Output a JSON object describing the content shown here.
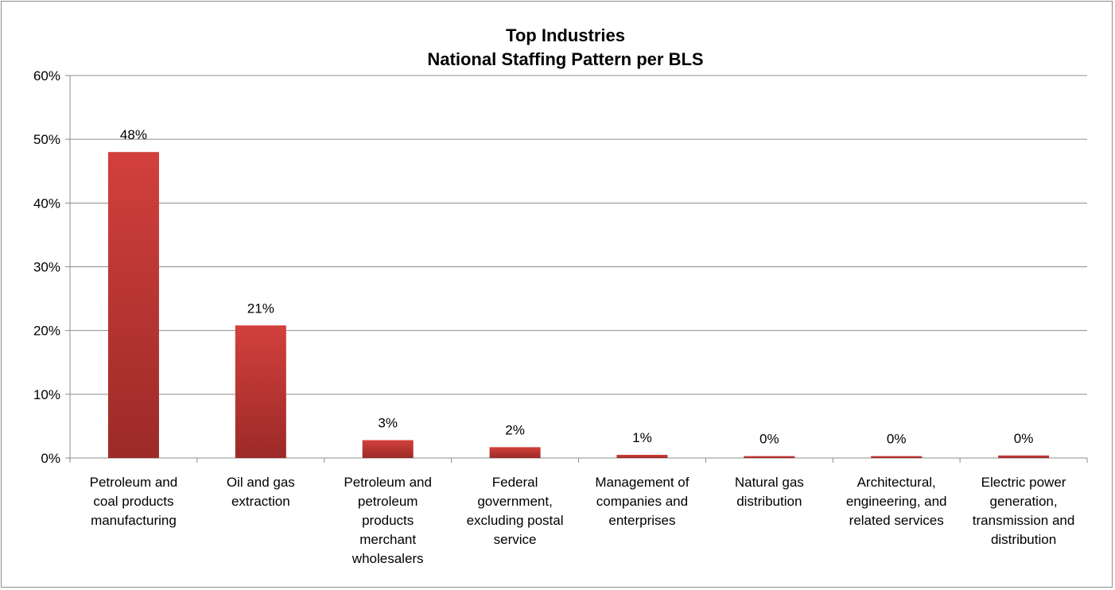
{
  "chart_data": {
    "type": "bar",
    "title_lines": [
      "Top Industries",
      "National Staffing Pattern per BLS"
    ],
    "xlabel": "",
    "ylabel": "",
    "ylim": [
      0,
      60
    ],
    "y_unit": "%",
    "y_ticks": [
      0,
      10,
      20,
      30,
      40,
      50,
      60
    ],
    "y_tick_labels": [
      "0%",
      "10%",
      "20%",
      "30%",
      "40%",
      "50%",
      "60%"
    ],
    "grid": true,
    "legend": "none",
    "categories": [
      "Petroleum and coal products manufacturing",
      "Oil and gas extraction",
      "Petroleum and petroleum products merchant wholesalers",
      "Federal government, excluding postal service",
      "Management of companies and enterprises",
      "Natural gas distribution",
      "Architectural, engineering, and related services",
      "Electric power generation, transmission and distribution"
    ],
    "category_label_lines": [
      [
        "Petroleum and",
        "coal products",
        "manufacturing"
      ],
      [
        "Oil and gas",
        "extraction"
      ],
      [
        "Petroleum and",
        "petroleum",
        "products",
        "merchant",
        "wholesalers"
      ],
      [
        "Federal",
        "government,",
        "excluding postal",
        "service"
      ],
      [
        "Management of",
        "companies and",
        "enterprises"
      ],
      [
        "Natural gas",
        "distribution"
      ],
      [
        "Architectural,",
        "engineering, and",
        "related services"
      ],
      [
        "Electric power",
        "generation,",
        "transmission and",
        "distribution"
      ]
    ],
    "values": [
      48,
      20.8,
      2.8,
      1.7,
      0.5,
      0.3,
      0.3,
      0.4
    ],
    "data_labels": [
      "48%",
      "21%",
      "3%",
      "2%",
      "1%",
      "0%",
      "0%",
      "0%"
    ],
    "bar_color": "#c0392b"
  }
}
